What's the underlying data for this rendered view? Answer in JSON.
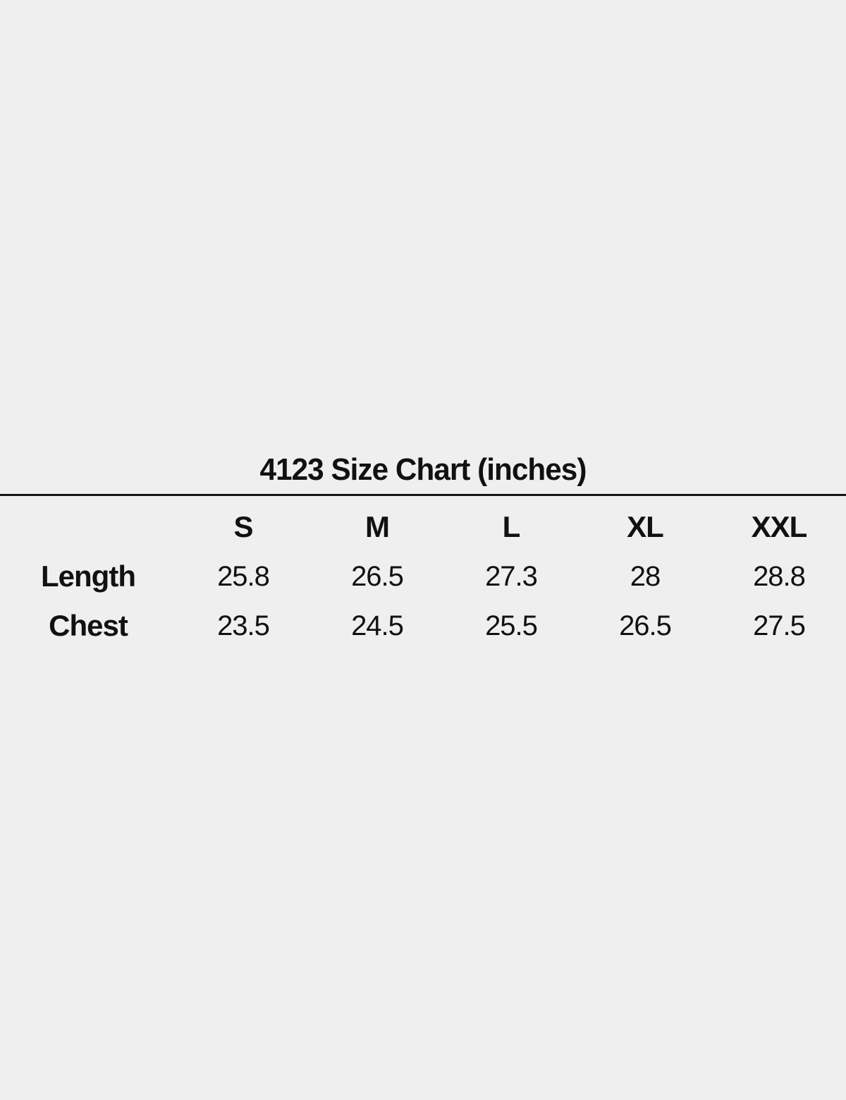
{
  "colors": {
    "background": "#efefef",
    "text": "#111111",
    "divider": "#161616"
  },
  "chart_data": {
    "type": "table",
    "title": "4123 Size Chart (inches)",
    "columns": [
      "S",
      "M",
      "L",
      "XL",
      "XXL"
    ],
    "rows": [
      {
        "label": "Length",
        "values": [
          "25.8",
          "26.5",
          "27.3",
          "28",
          "28.8"
        ]
      },
      {
        "label": "Chest",
        "values": [
          "23.5",
          "24.5",
          "25.5",
          "26.5",
          "27.5"
        ]
      }
    ]
  }
}
